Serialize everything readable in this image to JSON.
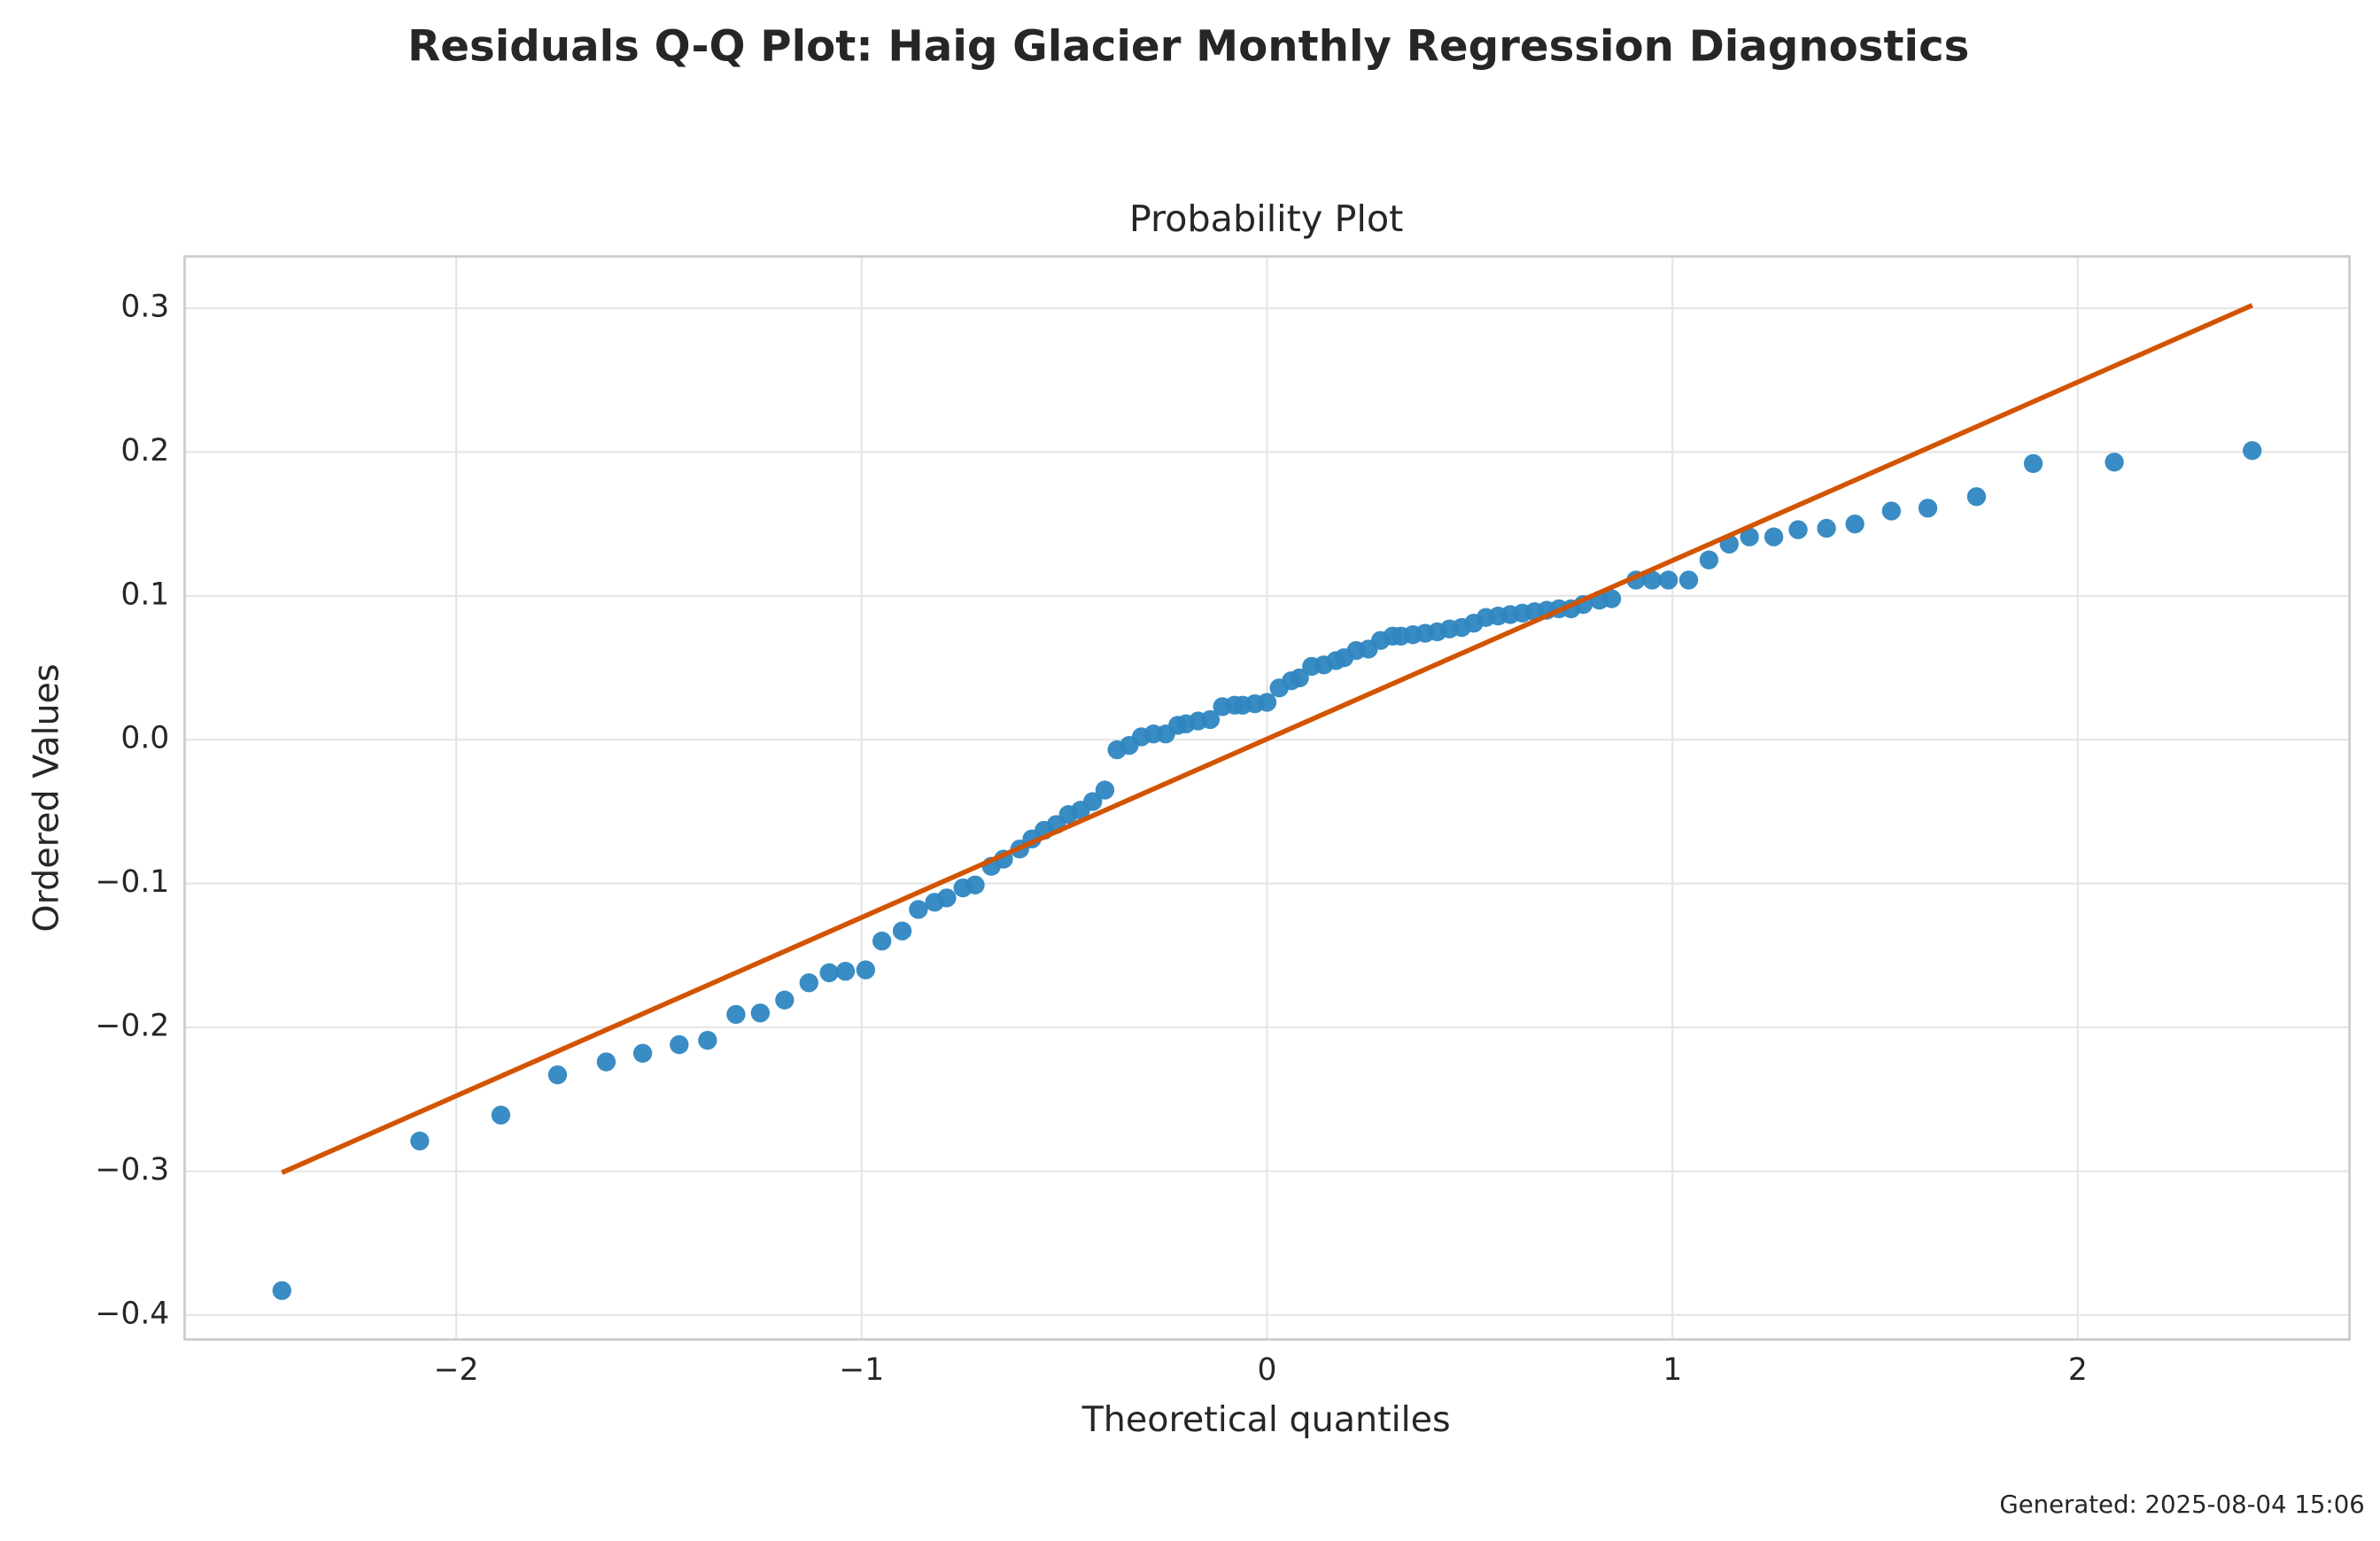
{
  "chart_data": {
    "type": "scatter",
    "title": "Residuals Q-Q Plot: Haig Glacier Monthly Regression Diagnostics",
    "subtitle": "Probability Plot",
    "x_label": "Theoretical quantiles",
    "y_label": "Ordered Values",
    "footnote": "Generated: 2025-08-04 15:06",
    "grid": true,
    "xlim": [
      -2.67,
      2.67
    ],
    "ylim": [
      -0.417,
      0.336
    ],
    "xticks": [
      {
        "value": -2,
        "label": "−2"
      },
      {
        "value": -1,
        "label": "−1"
      },
      0,
      1,
      2
    ],
    "yticks": [
      {
        "value": -0.4,
        "label": "−0.4"
      },
      {
        "value": -0.3,
        "label": "−0.3"
      },
      {
        "value": -0.2,
        "label": "−0.2"
      },
      {
        "value": -0.1,
        "label": "−0.1"
      },
      {
        "value": 0,
        "label": "0.0"
      },
      0.1,
      0.2,
      0.3
    ],
    "series": [
      {
        "color": "#2e86c1",
        "style": "points",
        "x": [
          -2.43,
          -2.09,
          -1.89,
          -1.75,
          -1.63,
          -1.54,
          -1.45,
          -1.38,
          -1.31,
          -1.25,
          -1.19,
          -1.13,
          -1.08,
          -1.04,
          -0.99,
          -0.95,
          -0.9,
          -0.86,
          -0.82,
          -0.79,
          -0.75,
          -0.72,
          -0.68,
          -0.65,
          -0.61,
          -0.58,
          -0.55,
          -0.52,
          -0.49,
          -0.46,
          -0.43,
          -0.4,
          -0.37,
          -0.34,
          -0.31,
          -0.28,
          -0.25,
          -0.22,
          -0.2,
          -0.17,
          -0.14,
          -0.11,
          -0.08,
          -0.06,
          -0.03,
          0.0,
          0.03,
          0.06,
          0.08,
          0.11,
          0.14,
          0.17,
          0.19,
          0.22,
          0.25,
          0.28,
          0.31,
          0.33,
          0.36,
          0.39,
          0.42,
          0.45,
          0.48,
          0.51,
          0.54,
          0.57,
          0.6,
          0.63,
          0.66,
          0.69,
          0.72,
          0.75,
          0.78,
          0.82,
          0.85,
          0.91,
          0.95,
          0.99,
          1.04,
          1.09,
          1.14,
          1.19,
          1.25,
          1.31,
          1.38,
          1.45,
          1.54,
          1.63,
          1.75,
          1.89,
          2.09,
          2.43
        ],
        "values": [
          -0.383,
          -0.279,
          -0.261,
          -0.233,
          -0.224,
          -0.218,
          -0.212,
          -0.209,
          -0.191,
          -0.19,
          -0.181,
          -0.169,
          -0.162,
          -0.161,
          -0.16,
          -0.14,
          -0.133,
          -0.118,
          -0.113,
          -0.11,
          -0.103,
          -0.101,
          -0.088,
          -0.083,
          -0.076,
          -0.069,
          -0.063,
          -0.059,
          -0.052,
          -0.049,
          -0.043,
          -0.035,
          -0.007,
          -0.004,
          0.002,
          0.004,
          0.004,
          0.01,
          0.011,
          0.013,
          0.014,
          0.023,
          0.024,
          0.024,
          0.025,
          0.026,
          0.036,
          0.041,
          0.043,
          0.051,
          0.052,
          0.055,
          0.057,
          0.062,
          0.063,
          0.069,
          0.072,
          0.072,
          0.073,
          0.074,
          0.075,
          0.077,
          0.078,
          0.081,
          0.085,
          0.086,
          0.087,
          0.088,
          0.089,
          0.09,
          0.091,
          0.091,
          0.094,
          0.097,
          0.098,
          0.111,
          0.111,
          0.111,
          0.111,
          0.125,
          0.136,
          0.141,
          0.141,
          0.146,
          0.147,
          0.15,
          0.159,
          0.161,
          0.169,
          0.192,
          0.193,
          0.201
        ]
      },
      {
        "color": "#d35400",
        "style": "line",
        "x": [
          -2.43,
          2.43
        ],
        "values": [
          -0.301,
          0.302
        ]
      }
    ]
  }
}
